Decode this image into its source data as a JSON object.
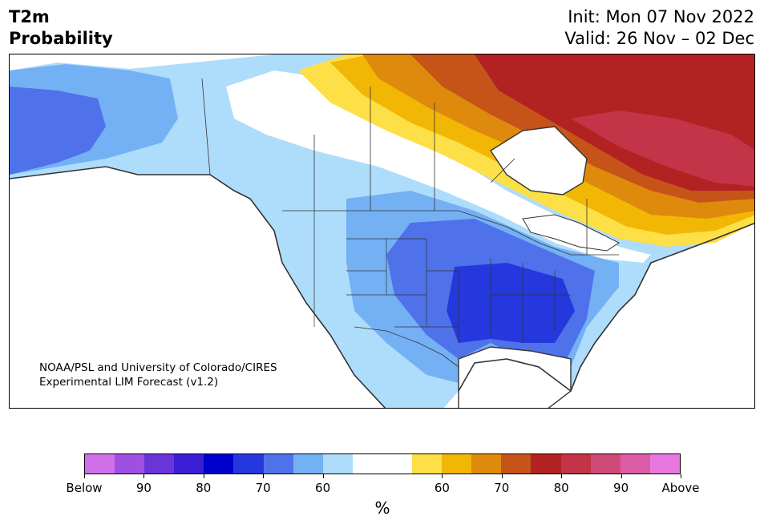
{
  "header": {
    "title": "T2m\nProbability",
    "init": "Init: Mon 07 Nov 2022",
    "valid": "Valid: 26 Nov – 02 Dec"
  },
  "credit": {
    "line1": "NOAA/PSL and University of Colorado/CIRES",
    "line2": "Experimental LIM Forecast (v1.2)"
  },
  "colorbar": {
    "colors": [
      "#d070e8",
      "#a050e0",
      "#6a35d8",
      "#3a1ed6",
      "#0000cc",
      "#2438de",
      "#4f72ea",
      "#74b0f4",
      "#aedcfb",
      "#ffffff",
      "#ffffff",
      "#fde047",
      "#f2b705",
      "#de8a0c",
      "#c65418",
      "#b32222",
      "#c43448",
      "#cf4a78",
      "#db5ca4",
      "#e878e0"
    ],
    "labels": [
      "Below",
      "90",
      "80",
      "70",
      "60",
      "60",
      "70",
      "80",
      "90",
      "Above"
    ],
    "unit": "%"
  },
  "map": {
    "ocean_color": "#ffffff",
    "land_outline_color": "#333333",
    "palette": {
      "cold_60": "#aedcfb",
      "cold_70": "#74b0f4",
      "cold_80": "#4f72ea",
      "cold_90": "#2438de",
      "warm_60": "#fde047",
      "warm_70": "#f2b705",
      "warm_80": "#de8a0c",
      "warm_90": "#c65418",
      "warm_95": "#b32222",
      "warm_97": "#c43448"
    }
  }
}
